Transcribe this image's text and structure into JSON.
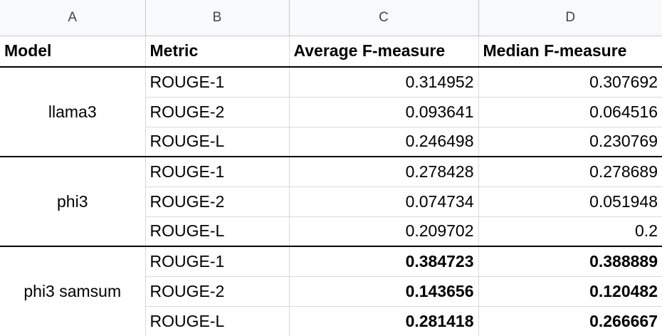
{
  "columns": [
    "A",
    "B",
    "C",
    "D"
  ],
  "header": {
    "model": "Model",
    "metric": "Metric",
    "avg": "Average F-measure",
    "median": "Median F-measure"
  },
  "groups": [
    {
      "model": "llama3",
      "rows": [
        {
          "metric": "ROUGE-1",
          "avg": "0.314952",
          "median": "0.307692"
        },
        {
          "metric": "ROUGE-2",
          "avg": "0.093641",
          "median": "0.064516"
        },
        {
          "metric": "ROUGE-L",
          "avg": "0.246498",
          "median": "0.230769"
        }
      ]
    },
    {
      "model": "phi3",
      "rows": [
        {
          "metric": "ROUGE-1",
          "avg": "0.278428",
          "median": "0.278689"
        },
        {
          "metric": "ROUGE-2",
          "avg": "0.074734",
          "median": "0.051948"
        },
        {
          "metric": "ROUGE-L",
          "avg": "0.209702",
          "median": "0.2"
        }
      ]
    },
    {
      "model": "phi3 samsum",
      "rows": [
        {
          "metric": "ROUGE-1",
          "avg": "0.384723",
          "median": "0.388889"
        },
        {
          "metric": "ROUGE-2",
          "avg": "0.143656",
          "median": "0.120482"
        },
        {
          "metric": "ROUGE-L",
          "avg": "0.281418",
          "median": "0.266667"
        }
      ]
    }
  ]
}
